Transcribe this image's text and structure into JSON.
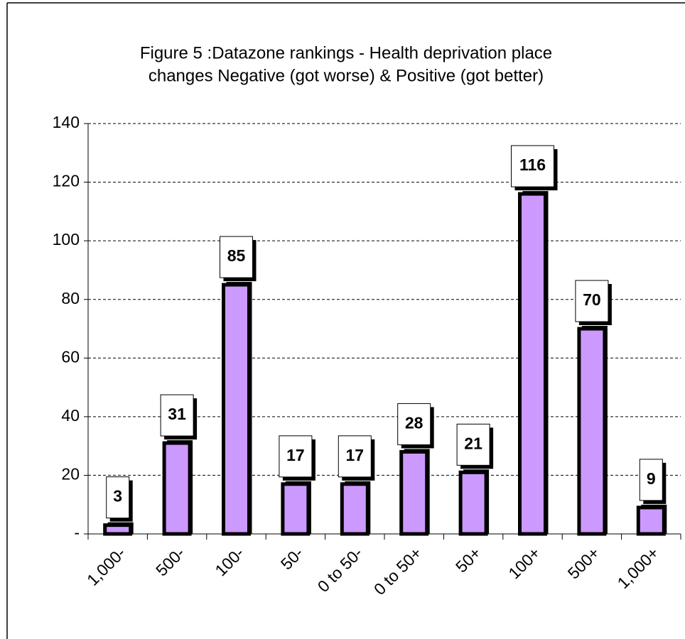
{
  "chart_data": {
    "type": "bar",
    "title": [
      "Figure 5 :Datazone rankings - Health deprivation place",
      "changes Negative (got worse) & Positive (got better)"
    ],
    "categories": [
      "1,000-",
      "500-",
      "100-",
      "50-",
      "0 to 50-",
      "0 to 50+",
      "50+",
      "100+",
      "500+",
      "1,000+"
    ],
    "values": [
      3,
      31,
      85,
      17,
      17,
      28,
      21,
      116,
      70,
      9
    ],
    "color": "#cc99ff",
    "ylim": [
      0,
      140
    ],
    "yticks": [
      {
        "value": 0,
        "label": "-"
      },
      20,
      40,
      60,
      80,
      100,
      120,
      140
    ],
    "grid": true
  }
}
